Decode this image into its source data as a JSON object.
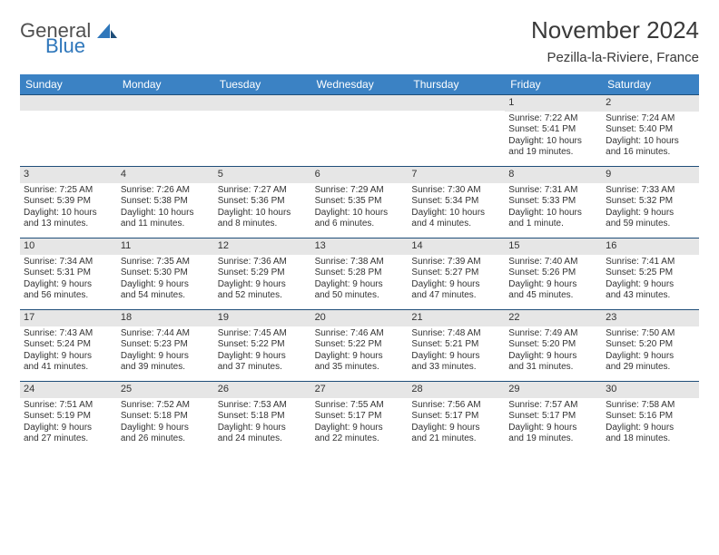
{
  "brand": {
    "general": "General",
    "blue": "Blue"
  },
  "title": "November 2024",
  "location": "Pezilla-la-Riviere, France",
  "colors": {
    "header_bg": "#3b82c4",
    "header_text": "#ffffff",
    "row_border": "#1f4e79",
    "daynum_bg": "#e6e6e6",
    "text": "#333333",
    "brand_gray": "#505050",
    "brand_blue": "#2f77bb",
    "page_bg": "#ffffff"
  },
  "days_of_week": [
    "Sunday",
    "Monday",
    "Tuesday",
    "Wednesday",
    "Thursday",
    "Friday",
    "Saturday"
  ],
  "weeks": [
    [
      {
        "blank": true
      },
      {
        "blank": true
      },
      {
        "blank": true
      },
      {
        "blank": true
      },
      {
        "blank": true
      },
      {
        "n": "1",
        "sr": "Sunrise: 7:22 AM",
        "ss": "Sunset: 5:41 PM",
        "d1": "Daylight: 10 hours",
        "d2": "and 19 minutes."
      },
      {
        "n": "2",
        "sr": "Sunrise: 7:24 AM",
        "ss": "Sunset: 5:40 PM",
        "d1": "Daylight: 10 hours",
        "d2": "and 16 minutes."
      }
    ],
    [
      {
        "n": "3",
        "sr": "Sunrise: 7:25 AM",
        "ss": "Sunset: 5:39 PM",
        "d1": "Daylight: 10 hours",
        "d2": "and 13 minutes."
      },
      {
        "n": "4",
        "sr": "Sunrise: 7:26 AM",
        "ss": "Sunset: 5:38 PM",
        "d1": "Daylight: 10 hours",
        "d2": "and 11 minutes."
      },
      {
        "n": "5",
        "sr": "Sunrise: 7:27 AM",
        "ss": "Sunset: 5:36 PM",
        "d1": "Daylight: 10 hours",
        "d2": "and 8 minutes."
      },
      {
        "n": "6",
        "sr": "Sunrise: 7:29 AM",
        "ss": "Sunset: 5:35 PM",
        "d1": "Daylight: 10 hours",
        "d2": "and 6 minutes."
      },
      {
        "n": "7",
        "sr": "Sunrise: 7:30 AM",
        "ss": "Sunset: 5:34 PM",
        "d1": "Daylight: 10 hours",
        "d2": "and 4 minutes."
      },
      {
        "n": "8",
        "sr": "Sunrise: 7:31 AM",
        "ss": "Sunset: 5:33 PM",
        "d1": "Daylight: 10 hours",
        "d2": "and 1 minute."
      },
      {
        "n": "9",
        "sr": "Sunrise: 7:33 AM",
        "ss": "Sunset: 5:32 PM",
        "d1": "Daylight: 9 hours",
        "d2": "and 59 minutes."
      }
    ],
    [
      {
        "n": "10",
        "sr": "Sunrise: 7:34 AM",
        "ss": "Sunset: 5:31 PM",
        "d1": "Daylight: 9 hours",
        "d2": "and 56 minutes."
      },
      {
        "n": "11",
        "sr": "Sunrise: 7:35 AM",
        "ss": "Sunset: 5:30 PM",
        "d1": "Daylight: 9 hours",
        "d2": "and 54 minutes."
      },
      {
        "n": "12",
        "sr": "Sunrise: 7:36 AM",
        "ss": "Sunset: 5:29 PM",
        "d1": "Daylight: 9 hours",
        "d2": "and 52 minutes."
      },
      {
        "n": "13",
        "sr": "Sunrise: 7:38 AM",
        "ss": "Sunset: 5:28 PM",
        "d1": "Daylight: 9 hours",
        "d2": "and 50 minutes."
      },
      {
        "n": "14",
        "sr": "Sunrise: 7:39 AM",
        "ss": "Sunset: 5:27 PM",
        "d1": "Daylight: 9 hours",
        "d2": "and 47 minutes."
      },
      {
        "n": "15",
        "sr": "Sunrise: 7:40 AM",
        "ss": "Sunset: 5:26 PM",
        "d1": "Daylight: 9 hours",
        "d2": "and 45 minutes."
      },
      {
        "n": "16",
        "sr": "Sunrise: 7:41 AM",
        "ss": "Sunset: 5:25 PM",
        "d1": "Daylight: 9 hours",
        "d2": "and 43 minutes."
      }
    ],
    [
      {
        "n": "17",
        "sr": "Sunrise: 7:43 AM",
        "ss": "Sunset: 5:24 PM",
        "d1": "Daylight: 9 hours",
        "d2": "and 41 minutes."
      },
      {
        "n": "18",
        "sr": "Sunrise: 7:44 AM",
        "ss": "Sunset: 5:23 PM",
        "d1": "Daylight: 9 hours",
        "d2": "and 39 minutes."
      },
      {
        "n": "19",
        "sr": "Sunrise: 7:45 AM",
        "ss": "Sunset: 5:22 PM",
        "d1": "Daylight: 9 hours",
        "d2": "and 37 minutes."
      },
      {
        "n": "20",
        "sr": "Sunrise: 7:46 AM",
        "ss": "Sunset: 5:22 PM",
        "d1": "Daylight: 9 hours",
        "d2": "and 35 minutes."
      },
      {
        "n": "21",
        "sr": "Sunrise: 7:48 AM",
        "ss": "Sunset: 5:21 PM",
        "d1": "Daylight: 9 hours",
        "d2": "and 33 minutes."
      },
      {
        "n": "22",
        "sr": "Sunrise: 7:49 AM",
        "ss": "Sunset: 5:20 PM",
        "d1": "Daylight: 9 hours",
        "d2": "and 31 minutes."
      },
      {
        "n": "23",
        "sr": "Sunrise: 7:50 AM",
        "ss": "Sunset: 5:20 PM",
        "d1": "Daylight: 9 hours",
        "d2": "and 29 minutes."
      }
    ],
    [
      {
        "n": "24",
        "sr": "Sunrise: 7:51 AM",
        "ss": "Sunset: 5:19 PM",
        "d1": "Daylight: 9 hours",
        "d2": "and 27 minutes."
      },
      {
        "n": "25",
        "sr": "Sunrise: 7:52 AM",
        "ss": "Sunset: 5:18 PM",
        "d1": "Daylight: 9 hours",
        "d2": "and 26 minutes."
      },
      {
        "n": "26",
        "sr": "Sunrise: 7:53 AM",
        "ss": "Sunset: 5:18 PM",
        "d1": "Daylight: 9 hours",
        "d2": "and 24 minutes."
      },
      {
        "n": "27",
        "sr": "Sunrise: 7:55 AM",
        "ss": "Sunset: 5:17 PM",
        "d1": "Daylight: 9 hours",
        "d2": "and 22 minutes."
      },
      {
        "n": "28",
        "sr": "Sunrise: 7:56 AM",
        "ss": "Sunset: 5:17 PM",
        "d1": "Daylight: 9 hours",
        "d2": "and 21 minutes."
      },
      {
        "n": "29",
        "sr": "Sunrise: 7:57 AM",
        "ss": "Sunset: 5:17 PM",
        "d1": "Daylight: 9 hours",
        "d2": "and 19 minutes."
      },
      {
        "n": "30",
        "sr": "Sunrise: 7:58 AM",
        "ss": "Sunset: 5:16 PM",
        "d1": "Daylight: 9 hours",
        "d2": "and 18 minutes."
      }
    ]
  ]
}
